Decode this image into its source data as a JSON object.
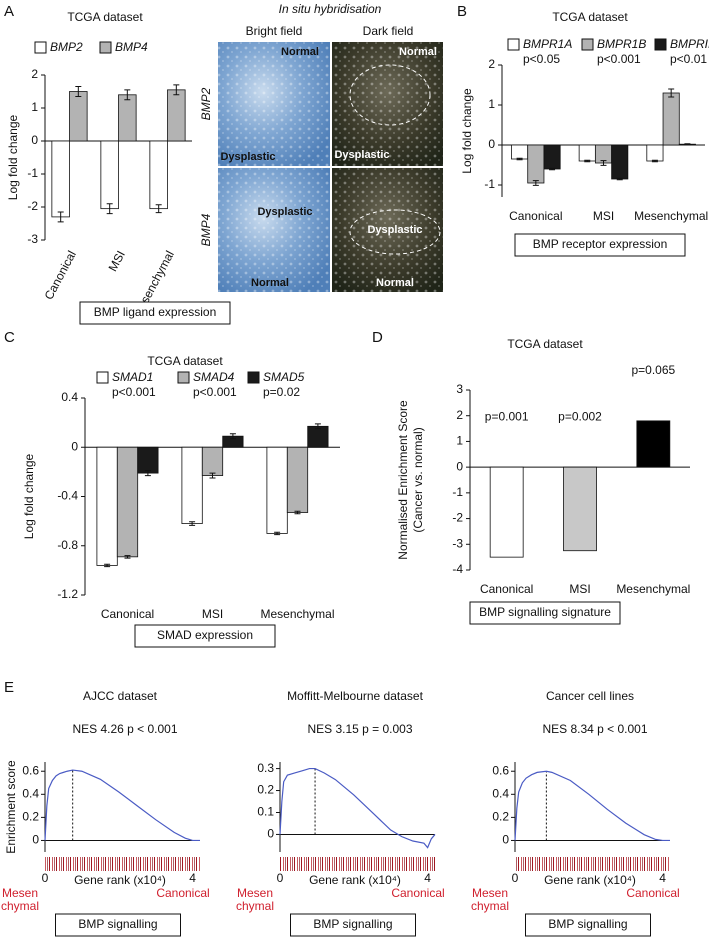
{
  "panel_labels": [
    "A",
    "B",
    "C",
    "D",
    "E"
  ],
  "ish_panel": {
    "title": "In situ hybridisation",
    "columns": [
      "Bright field",
      "Dark field"
    ],
    "rows": [
      "BMP2",
      "BMP4"
    ],
    "image_labels": [
      [
        "Normal",
        "Dysplastic"
      ],
      [
        "Normal",
        "Dysplastic"
      ],
      [
        "Dysplastic",
        "Normal"
      ],
      [
        "Dysplastic",
        "Normal"
      ]
    ]
  },
  "chart_data": [
    {
      "type": "bar",
      "title": "TCGA dataset",
      "ylabel": "Log fold change",
      "caption": "BMP ligand expression",
      "categories": [
        "Canonical",
        "MSI",
        "Mesenchymal"
      ],
      "series": [
        {
          "name": "BMP2",
          "color": "#ffffff",
          "values": [
            -2.3,
            -2.05,
            -2.05
          ],
          "errors": [
            0.15,
            0.15,
            0.12
          ]
        },
        {
          "name": "BMP4",
          "color": "#b3b3b3",
          "values": [
            1.5,
            1.4,
            1.55
          ],
          "errors": [
            0.15,
            0.15,
            0.15
          ]
        }
      ],
      "ylim": [
        -3,
        2
      ],
      "yticks": [
        -3,
        -2,
        -1,
        0,
        1,
        2
      ]
    },
    {
      "type": "bar",
      "title": "TCGA dataset",
      "ylabel": "Log fold change",
      "caption": "BMP receptor expression",
      "categories": [
        "Canonical",
        "MSI",
        "Mesenchymal"
      ],
      "series": [
        {
          "name": "BMPR1A",
          "annotation": "p<0.05",
          "color": "#ffffff",
          "values": [
            -0.35,
            -0.4,
            -0.4
          ],
          "errors": [
            0.02,
            0.02,
            0.02
          ]
        },
        {
          "name": "BMPR1B",
          "annotation": "p<0.001",
          "color": "#b3b3b3",
          "values": [
            -0.95,
            -0.45,
            1.3
          ],
          "errors": [
            0.06,
            0.06,
            0.1
          ]
        },
        {
          "name": "BMPRII",
          "annotation": "p<0.01",
          "color": "#1a1a1a",
          "values": [
            -0.6,
            -0.85,
            0.02
          ],
          "errors": [
            0.02,
            0.02,
            0.01
          ]
        }
      ],
      "ylim": [
        -1.3,
        2
      ],
      "yticks": [
        -1,
        0,
        1,
        2
      ]
    },
    {
      "type": "bar",
      "title": "TCGA dataset",
      "ylabel": "Log fold change",
      "caption": "SMAD  expression",
      "categories": [
        "Canonical",
        "MSI",
        "Mesenchymal"
      ],
      "series": [
        {
          "name": "SMAD1",
          "annotation": "p<0.001",
          "color": "#ffffff",
          "values": [
            -0.96,
            -0.62,
            -0.7
          ],
          "errors": [
            0.01,
            0.015,
            0.01
          ]
        },
        {
          "name": "SMAD4",
          "annotation": "p<0.001",
          "color": "#b3b3b3",
          "values": [
            -0.89,
            -0.23,
            -0.53
          ],
          "errors": [
            0.01,
            0.02,
            0.01
          ]
        },
        {
          "name": "SMAD5",
          "annotation": "p=0.02",
          "color": "#1a1a1a",
          "values": [
            -0.21,
            0.09,
            0.17
          ],
          "errors": [
            0.02,
            0.02,
            0.02
          ]
        }
      ],
      "ylim": [
        -1.2,
        0.4
      ],
      "yticks": [
        -1.2,
        -0.8,
        -0.4,
        0,
        0.4
      ]
    },
    {
      "type": "bar",
      "title": "TCGA dataset",
      "ylabel": [
        "Normalised Enrichment Score",
        "(Cancer vs. normal)"
      ],
      "caption": "BMP signalling signature",
      "categories": [
        "Canonical",
        "MSI",
        "Mesenchymal"
      ],
      "values": [
        -3.5,
        -3.25,
        1.8
      ],
      "colors": [
        "#ffffff",
        "#c8c8c8",
        "#000000"
      ],
      "annotations": [
        "p=0.001",
        "p=0.002",
        "p=0.065"
      ],
      "ylim": [
        -4,
        3
      ],
      "yticks": [
        -4,
        -3,
        -2,
        -1,
        0,
        1,
        2,
        3
      ]
    },
    {
      "type": "line",
      "title": "AJCC dataset",
      "annotation": "NES 4.26   p < 0.001",
      "ylabel": "Enrichment score",
      "xlabel": "Gene rank (x10⁴)",
      "left_label": [
        "Mesen",
        "chymal"
      ],
      "right_label": "Canonical",
      "caption": "BMP signalling",
      "color": "#4a5bc4",
      "vline": 0.75,
      "x": [
        0,
        0.05,
        0.1,
        0.2,
        0.3,
        0.4,
        0.5,
        0.6,
        0.75,
        1.0,
        1.5,
        2.0,
        2.5,
        3.0,
        3.5,
        3.8,
        4.0,
        4.2
      ],
      "y": [
        0,
        0.3,
        0.45,
        0.52,
        0.56,
        0.58,
        0.59,
        0.6,
        0.61,
        0.6,
        0.53,
        0.42,
        0.3,
        0.18,
        0.07,
        0.02,
        0.0,
        0.0
      ],
      "xlim": [
        0,
        4.2
      ],
      "xticks": [
        0,
        4
      ],
      "ylim": [
        -0.1,
        0.68
      ],
      "yticks": [
        0,
        0.2,
        0.4,
        0.6
      ]
    },
    {
      "type": "line",
      "title": "Moffitt-Melbourne dataset",
      "annotation": "NES 3.15   p = 0.003",
      "xlabel": "Gene rank (x10⁴)",
      "left_label": [
        "Mesen",
        "chymal"
      ],
      "right_label": "Canonical",
      "caption": "BMP signalling",
      "color": "#4a5bc4",
      "vline": 0.95,
      "x": [
        0,
        0.05,
        0.1,
        0.2,
        0.4,
        0.6,
        0.8,
        0.95,
        1.2,
        1.5,
        2.0,
        2.5,
        3.0,
        3.3,
        3.6,
        3.9,
        4.0,
        4.1,
        4.2
      ],
      "y": [
        0,
        0.15,
        0.24,
        0.27,
        0.28,
        0.29,
        0.3,
        0.3,
        0.28,
        0.25,
        0.18,
        0.1,
        0.02,
        -0.01,
        -0.03,
        -0.04,
        -0.06,
        -0.02,
        0
      ],
      "xlim": [
        0,
        4.2
      ],
      "xticks": [
        0,
        4
      ],
      "ylim": [
        -0.08,
        0.33
      ],
      "yticks": [
        0,
        0.1,
        0.2,
        0.3
      ]
    },
    {
      "type": "line",
      "title": "Cancer cell lines",
      "annotation": "NES 8.34   p < 0.001",
      "xlabel": "Gene rank (x10⁴)",
      "left_label": [
        "Mesen",
        "chymal"
      ],
      "right_label": "Canonical",
      "caption": "BMP signalling",
      "color": "#4a5bc4",
      "vline": 0.85,
      "x": [
        0,
        0.05,
        0.1,
        0.2,
        0.3,
        0.45,
        0.6,
        0.85,
        1.0,
        1.5,
        2.0,
        2.5,
        3.0,
        3.5,
        3.8,
        4.0,
        4.2
      ],
      "y": [
        0,
        0.28,
        0.42,
        0.5,
        0.54,
        0.57,
        0.59,
        0.6,
        0.59,
        0.52,
        0.4,
        0.27,
        0.15,
        0.05,
        0.01,
        0.0,
        0.0
      ],
      "xlim": [
        0,
        4.2
      ],
      "xticks": [
        0,
        4
      ],
      "ylim": [
        -0.1,
        0.68
      ],
      "yticks": [
        0,
        0.2,
        0.4,
        0.6
      ]
    }
  ]
}
